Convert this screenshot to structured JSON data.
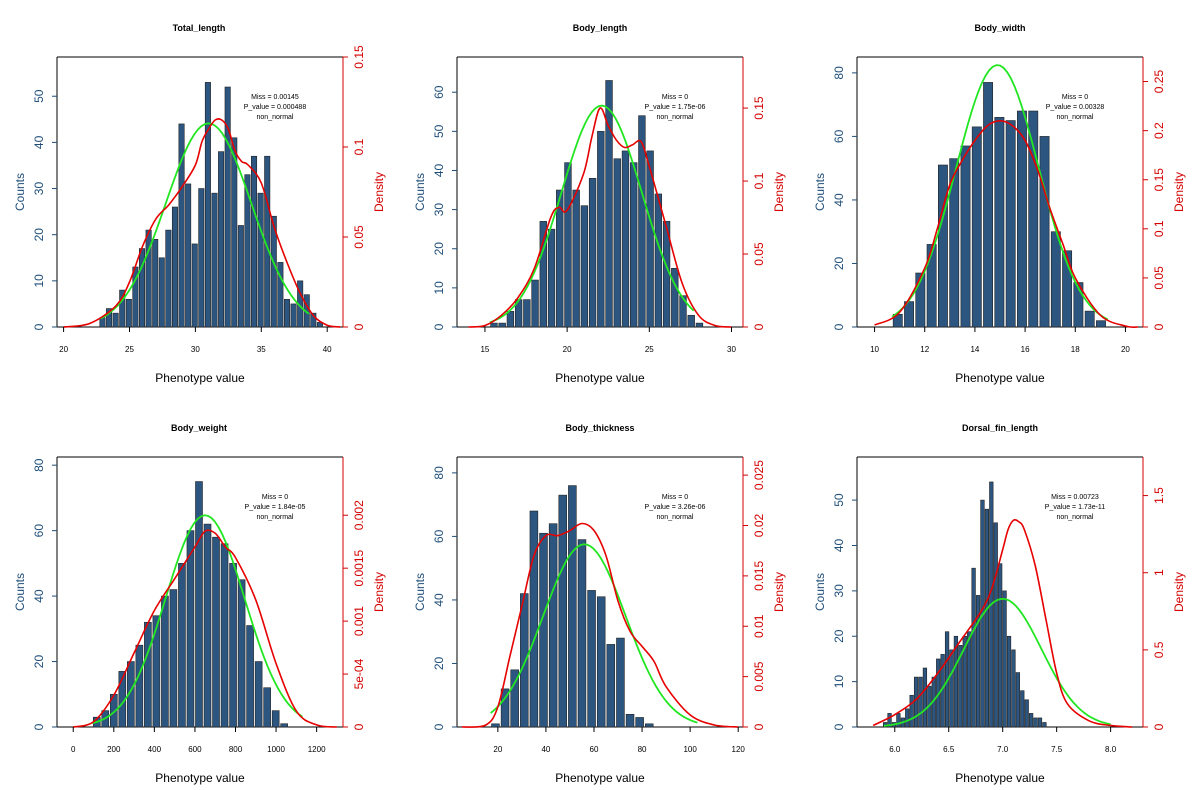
{
  "colors": {
    "bar": "#2c5680",
    "bar_stroke": "#222222",
    "normal_curve": "#22e622",
    "density_curve": "#e60000",
    "left_axis": "#1f4e79",
    "right_axis": "#d40000"
  },
  "chart_data": [
    {
      "type": "bar",
      "title": "Total_length",
      "xlabel": "Phenotype value",
      "ylabel": "Counts",
      "y2label": "Density",
      "xlim": [
        19.5,
        41.2
      ],
      "ylim": [
        0,
        58.5
      ],
      "y2lim": [
        0,
        0.15
      ],
      "xticks": [
        "20",
        "25",
        "30",
        "35",
        "40"
      ],
      "yticks": [
        "0",
        "10",
        "20",
        "30",
        "40",
        "50"
      ],
      "y2ticks": [
        "0",
        "0.05",
        "0.1",
        "0.15"
      ],
      "stats": {
        "miss": "Miss = 0.00145",
        "p_value": "P_value = 0.000488",
        "normality": "non_normal"
      },
      "bin_start": 22.7,
      "bin_width": 0.5,
      "counts": [
        2,
        4,
        3,
        8,
        6,
        13,
        17,
        21,
        19,
        15,
        21,
        26,
        44,
        31,
        18,
        30,
        53,
        29,
        38,
        52,
        41,
        22,
        33,
        37,
        29,
        37,
        24,
        14,
        6,
        5,
        10,
        7,
        3,
        1
      ],
      "normal": {
        "mean": 31.0,
        "sd": 3.25,
        "xrange": [
          22.8,
          38.6
        ]
      },
      "density": {
        "x": [
          20,
          22,
          24,
          25,
          26,
          27,
          28,
          29,
          30,
          30.5,
          31,
          31.5,
          32,
          32.5,
          33,
          33.5,
          34,
          35,
          36,
          37,
          38,
          39,
          40,
          41
        ],
        "y": [
          0,
          0.002,
          0.012,
          0.025,
          0.045,
          0.06,
          0.068,
          0.078,
          0.09,
          0.103,
          0.11,
          0.115,
          0.115,
          0.11,
          0.098,
          0.092,
          0.09,
          0.08,
          0.055,
          0.035,
          0.018,
          0.006,
          0.001,
          0
        ]
      }
    },
    {
      "type": "bar",
      "title": "Body_length",
      "xlabel": "Phenotype value",
      "ylabel": "Counts",
      "y2label": "Density",
      "xlim": [
        13.3,
        30.7
      ],
      "ylim": [
        0,
        69
      ],
      "y2lim": [
        0,
        0.185
      ],
      "xticks": [
        "15",
        "20",
        "25",
        "30"
      ],
      "yticks": [
        "0",
        "10",
        "20",
        "30",
        "40",
        "50",
        "60"
      ],
      "y2ticks": [
        "0",
        "0.05",
        "0.1",
        "0.15"
      ],
      "stats": {
        "miss": "Miss = 0",
        "p_value": "P_value = 1.75e-06",
        "normality": "non_normal"
      },
      "bin_start": 15.3,
      "bin_width": 0.5,
      "counts": [
        1,
        1,
        4,
        7,
        7,
        12,
        27,
        25,
        35,
        42,
        35,
        31,
        38,
        50,
        63,
        43,
        45,
        42,
        54,
        45,
        34,
        27,
        15,
        8,
        3,
        1
      ],
      "normal": {
        "mean": 22.1,
        "sd": 2.45,
        "xrange": [
          15.3,
          27.7
        ]
      },
      "density": {
        "x": [
          14,
          15,
          16,
          17,
          18,
          19,
          19.5,
          20,
          21,
          21.5,
          22,
          22.5,
          23,
          23.5,
          24,
          24.5,
          25,
          26,
          27,
          28,
          29,
          30
        ],
        "y": [
          0,
          0.001,
          0.008,
          0.02,
          0.04,
          0.075,
          0.082,
          0.08,
          0.105,
          0.13,
          0.15,
          0.138,
          0.128,
          0.123,
          0.125,
          0.127,
          0.11,
          0.07,
          0.03,
          0.008,
          0.001,
          0
        ]
      }
    },
    {
      "type": "bar",
      "title": "Body_width",
      "xlabel": "Phenotype value",
      "ylabel": "Counts",
      "y2label": "Density",
      "xlim": [
        9.3,
        20.7
      ],
      "ylim": [
        0,
        85
      ],
      "y2lim": [
        0,
        0.275
      ],
      "xticks": [
        "10",
        "12",
        "14",
        "16",
        "18",
        "20"
      ],
      "yticks": [
        "0",
        "20",
        "40",
        "60",
        "80"
      ],
      "y2ticks": [
        "0",
        "0.05",
        "0.1",
        "0.15",
        "0.2",
        "0.25"
      ],
      "stats": {
        "miss": "Miss = 0",
        "p_value": "P_value = 0.00328",
        "normality": "non_normal"
      },
      "bin_start": 10.7,
      "bin_width": 0.45,
      "counts": [
        4,
        8,
        17,
        26,
        51,
        53,
        57,
        63,
        77,
        66,
        65,
        68,
        68,
        60,
        30,
        24,
        14,
        5,
        2
      ],
      "normal": {
        "mean": 14.9,
        "sd": 1.65,
        "xrange": [
          10.7,
          19.3
        ]
      },
      "density": {
        "x": [
          10,
          11,
          12,
          12.5,
          13,
          13.5,
          14,
          14.5,
          15,
          15.5,
          16,
          16.5,
          17,
          17.5,
          18,
          19,
          20,
          20.5
        ],
        "y": [
          0.002,
          0.015,
          0.06,
          0.1,
          0.145,
          0.17,
          0.19,
          0.205,
          0.21,
          0.205,
          0.19,
          0.16,
          0.12,
          0.085,
          0.05,
          0.012,
          0.001,
          0
        ]
      }
    },
    {
      "type": "bar",
      "title": "Body_weight",
      "xlabel": "Phenotype value",
      "ylabel": "Counts",
      "y2label": "Density",
      "xlim": [
        -80,
        1330
      ],
      "ylim": [
        0,
        82.5
      ],
      "y2lim": [
        0,
        0.00255
      ],
      "xticks": [
        "0",
        "200",
        "400",
        "600",
        "800",
        "1000",
        "1200"
      ],
      "yticks": [
        "0",
        "20",
        "40",
        "60",
        "80"
      ],
      "y2ticks": [
        "0",
        "5e-04",
        "0.001",
        "0.0015",
        "0.002"
      ],
      "stats": {
        "miss": "Miss = 0",
        "p_value": "P_value = 1.84e-05",
        "normality": "non_normal"
      },
      "bin_start": 95,
      "bin_width": 42,
      "counts": [
        3,
        5,
        10,
        17,
        20,
        25,
        32,
        34,
        40,
        42,
        50,
        60,
        75,
        62,
        58,
        56,
        50,
        45,
        31,
        20,
        12,
        5,
        1
      ],
      "normal": {
        "mean": 650,
        "sd": 195,
        "xrange": [
          95,
          1130
        ]
      },
      "density": {
        "x": [
          0,
          100,
          200,
          300,
          400,
          500,
          600,
          650,
          700,
          750,
          800,
          900,
          1000,
          1100,
          1200,
          1300
        ],
        "y": [
          0,
          5e-05,
          0.0003,
          0.0007,
          0.0011,
          0.0014,
          0.0017,
          0.00185,
          0.00183,
          0.0017,
          0.0016,
          0.0012,
          0.0006,
          0.00015,
          2e-05,
          0
        ]
      }
    },
    {
      "type": "bar",
      "title": "Body_thickness",
      "xlabel": "Phenotype value",
      "ylabel": "Counts",
      "y2label": "Density",
      "xlim": [
        3,
        122
      ],
      "ylim": [
        0,
        85
      ],
      "y2lim": [
        0,
        0.0268
      ],
      "xticks": [
        "20",
        "40",
        "60",
        "80",
        "100",
        "120"
      ],
      "yticks": [
        "0",
        "20",
        "40",
        "60",
        "80"
      ],
      "y2ticks": [
        "0",
        "0.005",
        "0.01",
        "0.015",
        "0.02",
        "0.025"
      ],
      "stats": {
        "miss": "Miss = 0",
        "p_value": "P_value = 3.26e-06",
        "normality": "non_normal"
      },
      "bin_start": 17,
      "bin_width": 4,
      "counts": [
        1,
        12,
        18,
        42,
        68,
        61,
        64,
        73,
        76,
        59,
        43,
        41,
        26,
        28,
        4,
        3,
        1
      ],
      "normal": {
        "mean": 56,
        "sd": 17.2,
        "xrange": [
          17,
          103
        ]
      },
      "density": {
        "x": [
          5,
          15,
          20,
          25,
          30,
          35,
          40,
          45,
          50,
          55,
          60,
          65,
          70,
          75,
          80,
          85,
          90,
          100,
          110,
          120
        ],
        "y": [
          0,
          0.0002,
          0.002,
          0.007,
          0.012,
          0.017,
          0.019,
          0.019,
          0.0195,
          0.0202,
          0.0195,
          0.017,
          0.0125,
          0.0095,
          0.008,
          0.0065,
          0.004,
          0.0012,
          0.0002,
          0
        ]
      }
    },
    {
      "type": "bar",
      "title": "Dorsal_fin_length",
      "xlabel": "Phenotype value",
      "ylabel": "Counts",
      "y2label": "Density",
      "xlim": [
        5.65,
        8.3
      ],
      "ylim": [
        0,
        59.5
      ],
      "y2lim": [
        0,
        1.75
      ],
      "xticks": [
        "6.0",
        "6.5",
        "7.0",
        "7.5",
        "8.0"
      ],
      "yticks": [
        "0",
        "10",
        "20",
        "30",
        "40",
        "50"
      ],
      "y2ticks": [
        "0",
        "0.5",
        "1",
        "1.5"
      ],
      "stats": {
        "miss": "Miss = 0.00723",
        "p_value": "P_value = 1.73e-11",
        "normality": "non_normal"
      },
      "bin_start": 5.89,
      "bin_width": 0.041,
      "counts": [
        1,
        3,
        1,
        3,
        2,
        4,
        7,
        11,
        11,
        13,
        9,
        11,
        15,
        16,
        21,
        17,
        20,
        18,
        20,
        21,
        35,
        29,
        50,
        48,
        54,
        45,
        36,
        30,
        20,
        17,
        12,
        8,
        6,
        3,
        2,
        2,
        1
      ],
      "normal": {
        "mean": 7.0,
        "sd": 0.36,
        "xrange": [
          5.9,
          8.0
        ]
      },
      "density": {
        "x": [
          5.8,
          6.0,
          6.2,
          6.4,
          6.6,
          6.8,
          6.9,
          7.0,
          7.05,
          7.1,
          7.15,
          7.2,
          7.3,
          7.4,
          7.5,
          7.6,
          7.8,
          8.0,
          8.2
        ],
        "y": [
          0.01,
          0.08,
          0.18,
          0.35,
          0.55,
          0.75,
          0.9,
          1.15,
          1.28,
          1.34,
          1.33,
          1.28,
          1.05,
          0.7,
          0.35,
          0.15,
          0.04,
          0.01,
          0
        ]
      }
    }
  ]
}
